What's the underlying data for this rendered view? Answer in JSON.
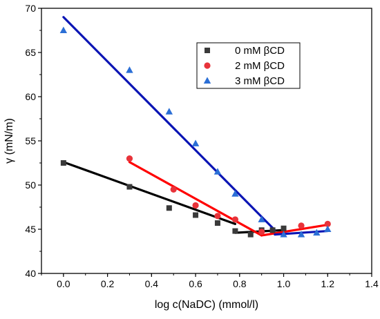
{
  "chart_data": {
    "type": "scatter",
    "xlabel": "log c(NaDC) (mmol/l)",
    "ylabel": "γ (mN/m)",
    "xlim": [
      -0.1,
      1.4
    ],
    "ylim": [
      40,
      70
    ],
    "xticks": [
      "0.0",
      "0.2",
      "0.4",
      "0.6",
      "0.8",
      "1.0",
      "1.2",
      "1.4"
    ],
    "yticks": [
      "40",
      "45",
      "50",
      "55",
      "60",
      "65",
      "70"
    ],
    "grid": false,
    "legend_position": "top-right",
    "series": [
      {
        "name": "0 mM βCD",
        "marker": "square",
        "color": "#3a3a3a",
        "line_color": "#000000",
        "x": [
          0.0,
          0.3,
          0.48,
          0.6,
          0.7,
          0.78,
          0.85,
          0.9,
          0.95,
          1.0
        ],
        "y": [
          52.5,
          49.8,
          47.4,
          46.6,
          45.7,
          44.8,
          44.4,
          44.9,
          44.9,
          45.1
        ],
        "fit_lines": [
          {
            "x": [
              0.0,
              0.78
            ],
            "y": [
              52.6,
              45.6
            ]
          },
          {
            "x": [
              0.78,
              1.0
            ],
            "y": [
              44.6,
              44.9
            ]
          }
        ]
      },
      {
        "name": "2 mM βCD",
        "marker": "circle",
        "color": "#e8333a",
        "line_color": "#ff0000",
        "x": [
          0.3,
          0.5,
          0.6,
          0.7,
          0.78,
          0.9,
          1.08,
          1.2
        ],
        "y": [
          53.0,
          49.5,
          47.7,
          46.5,
          46.1,
          44.7,
          45.4,
          45.6
        ],
        "fit_lines": [
          {
            "x": [
              0.3,
              0.9
            ],
            "y": [
              52.6,
              44.3
            ]
          },
          {
            "x": [
              0.9,
              1.2
            ],
            "y": [
              44.3,
              45.5
            ]
          }
        ]
      },
      {
        "name": "3 mM βCD",
        "marker": "triangle",
        "color": "#2b6fd6",
        "line_color": "#0a14b4",
        "x": [
          0.0,
          0.3,
          0.48,
          0.6,
          0.7,
          0.78,
          0.9,
          1.0,
          1.08,
          1.15,
          1.2
        ],
        "y": [
          67.5,
          63.0,
          58.3,
          54.7,
          51.5,
          49.0,
          46.1,
          44.4,
          44.4,
          44.6,
          45.0
        ],
        "fit_lines": [
          {
            "x": [
              0.0,
              0.96
            ],
            "y": [
              69.0,
              44.9
            ]
          },
          {
            "x": [
              0.96,
              1.2
            ],
            "y": [
              44.4,
              44.8
            ]
          }
        ]
      }
    ]
  }
}
